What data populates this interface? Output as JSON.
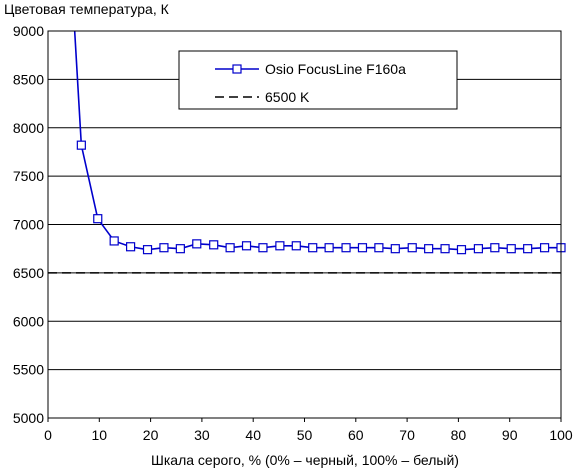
{
  "chart_data": {
    "type": "line",
    "title": "",
    "ylabel": "Цветовая температура, К",
    "xlabel": "Шкала серого, % (0% – черный, 100% – белый)",
    "xlim": [
      0,
      100
    ],
    "ylim": [
      5000,
      9000
    ],
    "x_ticks": [
      0,
      10,
      20,
      30,
      40,
      50,
      60,
      70,
      80,
      90,
      100
    ],
    "y_ticks": [
      5000,
      5500,
      6000,
      6500,
      7000,
      7500,
      8000,
      8500,
      9000
    ],
    "grid": {
      "horizontal": true,
      "vertical": false
    },
    "legend_position": "top-right",
    "series": [
      {
        "name": "Osio FocusLine F160a",
        "color": "#0000cc",
        "marker": "square",
        "x": [
          5.2,
          6.5,
          9.7,
          12.9,
          16.1,
          19.4,
          22.6,
          25.8,
          29.0,
          32.3,
          35.5,
          38.7,
          41.9,
          45.2,
          48.4,
          51.6,
          54.8,
          58.1,
          61.3,
          64.5,
          67.7,
          71.0,
          74.2,
          77.4,
          80.6,
          83.9,
          87.1,
          90.3,
          93.5,
          96.8,
          100.0
        ],
        "y": [
          9000,
          7820,
          7060,
          6830,
          6770,
          6740,
          6760,
          6750,
          6800,
          6790,
          6760,
          6780,
          6760,
          6780,
          6780,
          6760,
          6760,
          6760,
          6760,
          6760,
          6750,
          6760,
          6750,
          6750,
          6740,
          6750,
          6760,
          6750,
          6750,
          6760,
          6760
        ],
        "first_point_marker": false
      },
      {
        "name": "6500 K",
        "color": "#000000",
        "style": "dashed",
        "x": [
          0,
          100
        ],
        "y": [
          6500,
          6500
        ]
      }
    ]
  }
}
